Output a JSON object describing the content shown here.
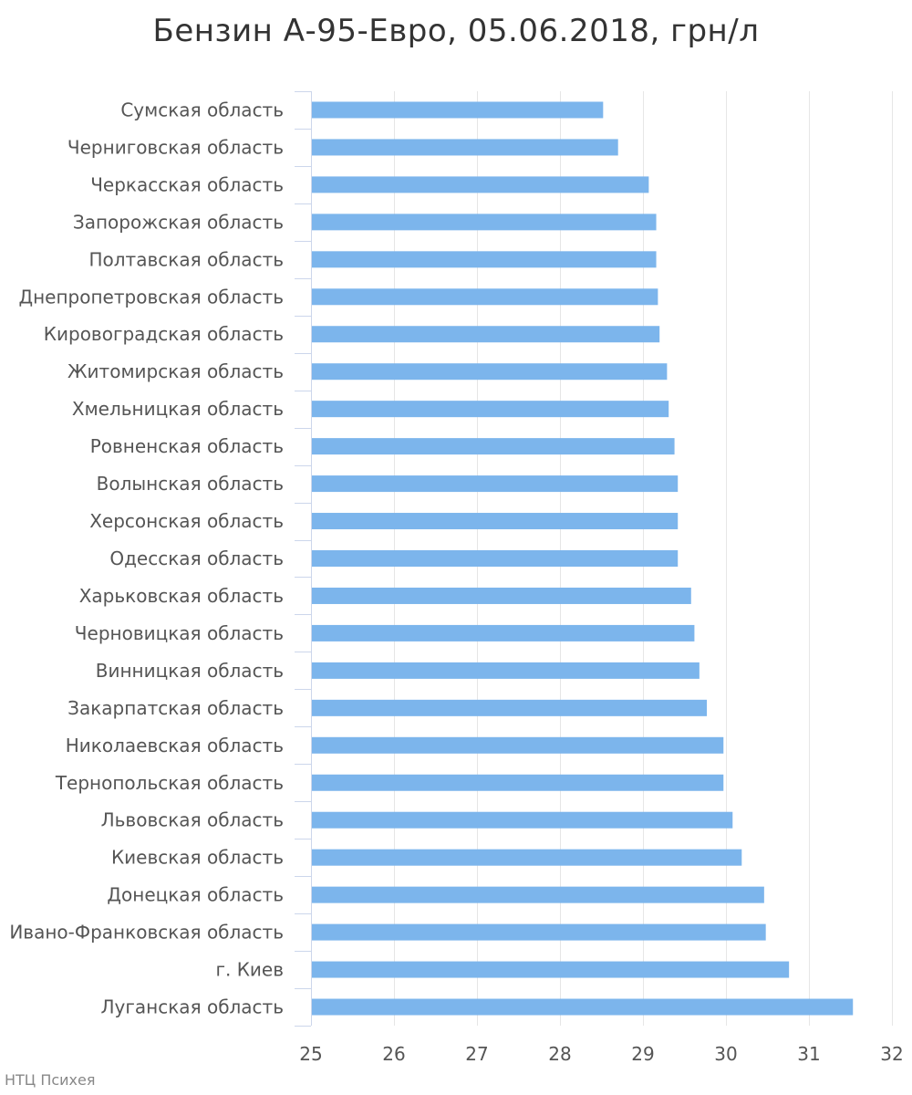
{
  "chart_data": {
    "type": "bar",
    "orientation": "horizontal",
    "title": "Бензин А-95-Евро, 05.06.2018, грн/л",
    "categories": [
      "Сумская область",
      "Черниговская область",
      "Черкасская область",
      "Запорожская область",
      "Полтавская область",
      "Днепропетровская область",
      "Кировоградская область",
      "Житомирская область",
      "Хмельницкая область",
      "Ровненская область",
      "Волынская область",
      "Херсонская область",
      "Одесская область",
      "Харьковская область",
      "Черновицкая область",
      "Винницкая область",
      "Закарпатская область",
      "Николаевская область",
      "Тернопольская область",
      "Львовская область",
      "Киевская область",
      "Донецкая область",
      "Ивано-Франковская область",
      "г. Киев",
      "Луганская область"
    ],
    "values": [
      28.52,
      28.7,
      29.07,
      29.16,
      29.16,
      29.18,
      29.2,
      29.29,
      29.31,
      29.38,
      29.42,
      29.42,
      29.42,
      29.58,
      29.62,
      29.68,
      29.77,
      29.97,
      29.97,
      30.08,
      30.19,
      30.46,
      30.48,
      30.76,
      31.53
    ],
    "xlim": [
      25,
      32
    ],
    "xticks": [
      "25",
      "26",
      "27",
      "28",
      "29",
      "30",
      "31",
      "32"
    ],
    "xlabel": "",
    "ylabel": "",
    "grid": true,
    "bar_color": "#7cb5ec",
    "grid_color": "#e6e6e6",
    "axis_color": "#ccd6eb",
    "label_color": "#555555"
  },
  "credits": "НТЦ Психея"
}
